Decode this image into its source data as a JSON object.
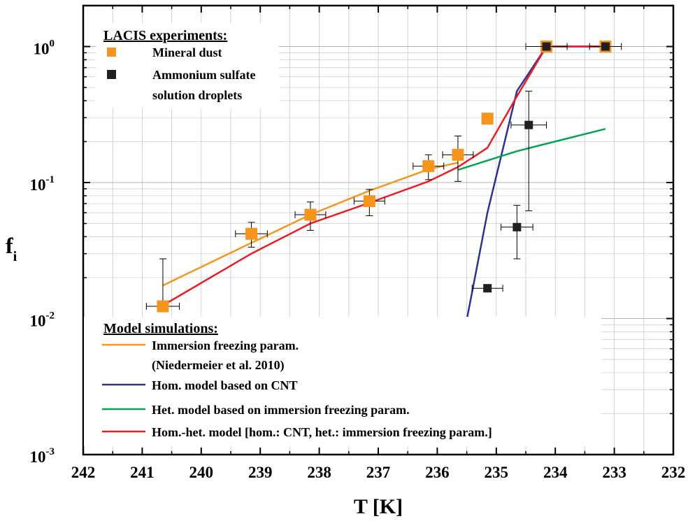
{
  "chart_data": {
    "type": "scatter",
    "xlabel": "T [K]",
    "ylabel_main": "f",
    "ylabel_sub": "i",
    "xlim": [
      242,
      232
    ],
    "ylim": [
      0.001,
      2
    ],
    "yscale": "log",
    "grid": true,
    "x_ticks": [
      242,
      241,
      240,
      239,
      238,
      237,
      236,
      235,
      234,
      233,
      232
    ],
    "y_ticks": [
      {
        "value": 0.001,
        "base": "10",
        "exp": "-3"
      },
      {
        "value": 0.01,
        "base": "10",
        "exp": "-2"
      },
      {
        "value": 0.1,
        "base": "10",
        "exp": "-1"
      },
      {
        "value": 1,
        "base": "10",
        "exp": "0"
      }
    ],
    "legend_top": {
      "heading": "LACIS experiments:",
      "entries": [
        {
          "label": "Mineral dust",
          "color": "#f7941d"
        },
        {
          "label": "Ammonium sulfate",
          "label2": "solution droplets",
          "color": "#231f20"
        }
      ]
    },
    "legend_bottom": {
      "heading": "Model simulations:",
      "entries": [
        {
          "label": "Immersion freezing param.",
          "label2": "(Niedermeier et al. 2010)",
          "color": "#f7941d"
        },
        {
          "label": "Hom. model based on CNT",
          "color": "#2e3192"
        },
        {
          "label": "Het. model based on immersion freezing param.",
          "color": "#00a651"
        },
        {
          "label": "Hom.-het. model [hom.: CNT, het.: immersion freezing param.]",
          "color": "#ed1c24"
        }
      ]
    },
    "points": [
      {
        "series": "Mineral dust",
        "color": "#f7941d",
        "edge": "#f7941d",
        "data": [
          {
            "x": 240.65,
            "y": 0.0123,
            "xerr": 0.28,
            "ylo": 0.0123,
            "yhi": 0.0275
          },
          {
            "x": 239.15,
            "y": 0.042,
            "xerr": 0.27,
            "ylo": 0.0335,
            "yhi": 0.051
          },
          {
            "x": 238.15,
            "y": 0.058,
            "xerr": 0.26,
            "ylo": 0.0445,
            "yhi": 0.072
          },
          {
            "x": 237.15,
            "y": 0.073,
            "xerr": 0.26,
            "ylo": 0.057,
            "yhi": 0.089
          },
          {
            "x": 236.15,
            "y": 0.132,
            "xerr": 0.26,
            "ylo": 0.105,
            "yhi": 0.16
          },
          {
            "x": 235.65,
            "y": 0.16,
            "xerr": 0.26,
            "ylo": 0.102,
            "yhi": 0.22
          },
          {
            "x": 235.15,
            "y": 0.295,
            "xerr": 0.0,
            "ylo": 0.275,
            "yhi": 0.315
          },
          {
            "x": 234.15,
            "y": 1.0,
            "xerr": 0.0,
            "ylo": 1.0,
            "yhi": 1.0
          },
          {
            "x": 233.15,
            "y": 1.0,
            "xerr": 0.0,
            "ylo": 1.0,
            "yhi": 1.0
          }
        ]
      },
      {
        "series": "Ammonium sulfate solution droplets",
        "color": "#231f20",
        "edge": "#231f20",
        "data": [
          {
            "x": 235.15,
            "y": 0.0167,
            "xerr": 0.26,
            "ylo": 0.0167,
            "yhi": 0.0167
          },
          {
            "x": 234.65,
            "y": 0.047,
            "xerr": 0.27,
            "ylo": 0.0275,
            "yhi": 0.068
          },
          {
            "x": 234.45,
            "y": 0.265,
            "xerr": 0.3,
            "ylo": 0.062,
            "yhi": 0.47
          },
          {
            "x": 234.15,
            "y": 1.0,
            "xerr": 0.35,
            "ylo": 1.0,
            "yhi": 1.0
          },
          {
            "x": 233.15,
            "y": 1.0,
            "xerr": 0.27,
            "ylo": 1.0,
            "yhi": 1.0
          }
        ]
      }
    ],
    "lines": [
      {
        "name": "Immersion freezing param.",
        "color": "#f7941d",
        "x": [
          240.65,
          239.15,
          238.15,
          237.15,
          236.15,
          235.65
        ],
        "y": [
          0.0175,
          0.036,
          0.058,
          0.087,
          0.125,
          0.14
        ]
      },
      {
        "name": "Hom. model based on CNT",
        "color": "#2e3192",
        "x": [
          235.65,
          235.15,
          234.65,
          234.15,
          233.15
        ],
        "y": [
          0.0045,
          0.06,
          0.47,
          1.0,
          1.0
        ]
      },
      {
        "name": "Het. model based on immersion freezing param.",
        "color": "#00a651",
        "x": [
          235.65,
          234.65,
          234.15,
          233.15
        ],
        "y": [
          0.124,
          0.17,
          0.193,
          0.248
        ]
      },
      {
        "name": "Hom.-het. model [hom.: CNT, het.: immersion freezing param.]",
        "color": "#ed1c24",
        "x": [
          240.65,
          239.15,
          238.15,
          237.15,
          236.15,
          235.65,
          235.15,
          234.65,
          234.15,
          233.15
        ],
        "y": [
          0.0125,
          0.03,
          0.05,
          0.071,
          0.102,
          0.13,
          0.18,
          0.43,
          1.0,
          1.0
        ]
      }
    ]
  }
}
